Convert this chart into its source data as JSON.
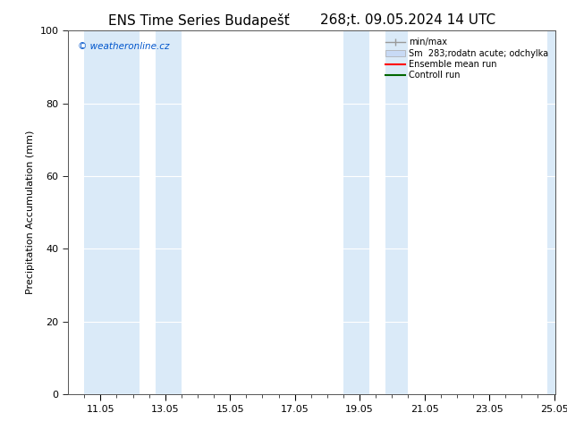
{
  "title_left": "ENS Time Series Budapešť",
  "title_right": "268;t. 09.05.2024 14 UTC",
  "ylabel": "Precipitation Accumulation (mm)",
  "watermark": "© weatheronline.cz",
  "watermark_color": "#0055cc",
  "ylim": [
    0,
    100
  ],
  "yticks": [
    0,
    20,
    40,
    60,
    80,
    100
  ],
  "xlim": [
    10.0,
    25.05
  ],
  "xtick_labels": [
    "11.05",
    "13.05",
    "15.05",
    "17.05",
    "19.05",
    "21.05",
    "23.05",
    "25.05"
  ],
  "xtick_positions": [
    11.0,
    13.0,
    15.0,
    17.0,
    19.0,
    21.0,
    23.0,
    25.0
  ],
  "shaded_regions": [
    {
      "x_start": 10.5,
      "x_end": 12.2,
      "color": "#daeaf8"
    },
    {
      "x_start": 12.7,
      "x_end": 13.5,
      "color": "#daeaf8"
    },
    {
      "x_start": 18.5,
      "x_end": 19.3,
      "color": "#daeaf8"
    },
    {
      "x_start": 19.8,
      "x_end": 20.5,
      "color": "#daeaf8"
    },
    {
      "x_start": 24.8,
      "x_end": 25.1,
      "color": "#daeaf8"
    }
  ],
  "bg_color": "#ffffff",
  "plot_bg_color": "#ffffff",
  "grid_color": "#ffffff",
  "border_color": "#555555",
  "title_fontsize": 11,
  "label_fontsize": 8,
  "tick_fontsize": 8,
  "legend_label_minmax": "min/max",
  "legend_label_sm": "Sm  283;rodatn acute; odchylka",
  "legend_label_ens": "Ensemble mean run",
  "legend_label_ctrl": "Controll run",
  "legend_color_minmax": "#999999",
  "legend_color_sm": "#c8daf5",
  "legend_color_ens": "#ff0000",
  "legend_color_ctrl": "#006600"
}
